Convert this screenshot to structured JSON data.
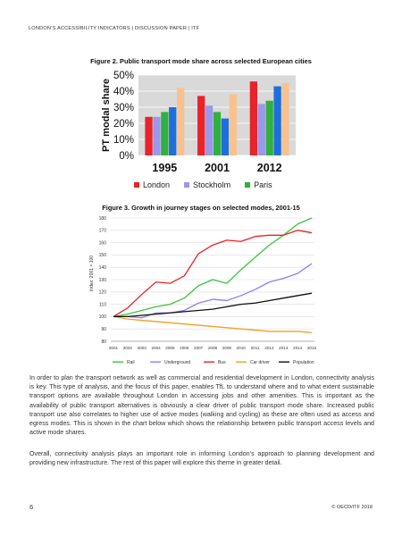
{
  "header": {
    "running_title": "LONDON’S ACCESSIBILITY INDICATORS | DISCUSSION PAPER | ITF"
  },
  "figure2": {
    "caption": "Figure 2.  Public transport mode share across selected European cities"
  },
  "figure3": {
    "caption": "Figure 3.  Growth in journey stages on selected modes, 2001-15"
  },
  "chart_data": [
    {
      "type": "bar",
      "title": "",
      "ylabel": "PT modal share",
      "xlabel": "",
      "categories": [
        "1995",
        "2001",
        "2012"
      ],
      "ylim": [
        0,
        50
      ],
      "yticks": [
        "0%",
        "10%",
        "20%",
        "30%",
        "40%",
        "50%"
      ],
      "grid": true,
      "legend_position": "bottom",
      "series": [
        {
          "name": "London",
          "color": "#e8232a",
          "values": [
            24,
            37,
            46
          ]
        },
        {
          "name": "Stockholm",
          "color": "#9b97ea",
          "values": [
            24,
            31,
            32
          ]
        },
        {
          "name": "Paris",
          "color": "#2fb041",
          "values": [
            27,
            27,
            34
          ]
        },
        {
          "name": "",
          "color": "#1e6fd9",
          "values": [
            30,
            23,
            43
          ]
        },
        {
          "name": "",
          "color": "#f8c28f",
          "values": [
            42,
            38,
            45
          ]
        }
      ]
    },
    {
      "type": "line",
      "title": "",
      "ylabel": "Index: 2001 = 100",
      "xlabel": "",
      "x": [
        "2001",
        "2002",
        "2003",
        "2004",
        "2005",
        "2006",
        "2007",
        "2008",
        "2009",
        "2010",
        "2011",
        "2012",
        "2013",
        "2014",
        "2015"
      ],
      "ylim": [
        80,
        180
      ],
      "yticks": [
        80,
        90,
        100,
        110,
        120,
        130,
        140,
        150,
        160,
        170,
        180
      ],
      "grid": true,
      "legend_position": "bottom",
      "series": [
        {
          "name": "Rail",
          "color": "#3cc43c",
          "values": [
            100,
            102,
            105,
            108,
            110,
            115,
            125,
            130,
            127,
            138,
            148,
            158,
            166,
            175,
            180
          ]
        },
        {
          "name": "Underground",
          "color": "#8c7ff0",
          "values": [
            100,
            100,
            99,
            103,
            103,
            105,
            111,
            114,
            113,
            117,
            122,
            128,
            131,
            135,
            143
          ]
        },
        {
          "name": "Bus",
          "color": "#e8232a",
          "values": [
            100,
            107,
            118,
            128,
            127,
            133,
            151,
            158,
            162,
            161,
            165,
            166,
            166,
            170,
            168
          ]
        },
        {
          "name": "Car driver",
          "color": "#f0a020",
          "values": [
            100,
            98,
            97,
            96,
            95,
            94,
            93,
            92,
            91,
            90,
            89,
            88,
            88,
            88,
            87
          ]
        },
        {
          "name": "Population",
          "color": "#111111",
          "values": [
            100,
            100,
            101,
            102,
            103,
            104,
            105,
            106,
            108,
            110,
            111,
            113,
            115,
            117,
            119
          ]
        }
      ]
    }
  ],
  "body": {
    "para1": "In order to plan the transport network as well as commercial and residential development in London, connectivity analysis is key. This type of analysis, and the focus of this paper, enables TfL to understand where and to what extent sustainable transport options are available throughout London in accessing jobs and other amenities. This is important as the availability of public transport alternatives is obviously a clear driver of public transport mode share. Increased public transport use also correlates to higher use of active modes (walking and cycling) as these are often used as access and egress modes. This is shown in the chart below which shows the relationship between public transport access levels and active mode shares.",
    "para2": "Overall, connectivity analysis plays an important role in informing London’s approach to planning development and providing new infrastructure. The rest of this paper will explore this theme in greater detail."
  },
  "footer": {
    "page_number": "6",
    "copyright": "© OECD/ITF 2018"
  }
}
